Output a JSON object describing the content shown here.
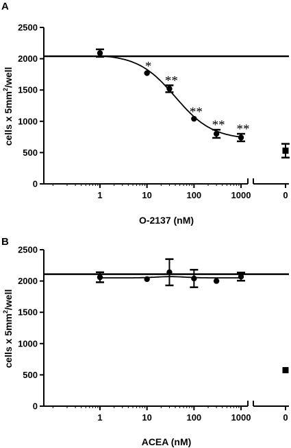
{
  "chart_data": [
    {
      "panel": "A",
      "type": "scatter",
      "xlabel": "O-2137 (nM)",
      "ylabel": {
        "pre": "cells x 5mm",
        "sup": "2",
        "post": "/well"
      },
      "xscale": "log",
      "xlim": [
        0.1,
        1500
      ],
      "x_ticks": [
        "1",
        "10",
        "100",
        "1000"
      ],
      "control_tick": "0",
      "ylim": [
        0,
        2500
      ],
      "y_ticks": [
        "0",
        "500",
        "1000",
        "1500",
        "2000",
        "2500"
      ],
      "reference_line": 2040,
      "points": [
        {
          "x": 1,
          "y": 2090,
          "err": 60,
          "sig": ""
        },
        {
          "x": 10,
          "y": 1770,
          "err": 0,
          "sig": "*"
        },
        {
          "x": 30,
          "y": 1520,
          "err": 55,
          "sig": "**"
        },
        {
          "x": 100,
          "y": 1040,
          "err": 0,
          "sig": "**"
        },
        {
          "x": 300,
          "y": 800,
          "err": 65,
          "sig": "**"
        },
        {
          "x": 1000,
          "y": 740,
          "err": 60,
          "sig": "**"
        }
      ],
      "control": {
        "x": "0",
        "y": 530,
        "err": 110
      },
      "fit": {
        "type": "sigmoid",
        "top": 2070,
        "bottom": 710,
        "ec50": 40,
        "hill": 1.1
      }
    },
    {
      "panel": "B",
      "type": "scatter",
      "xlabel": "ACEA (nM)",
      "ylabel": {
        "pre": "cells x 5mm",
        "sup": "2",
        "post": "/well"
      },
      "xscale": "log",
      "xlim": [
        0.1,
        1500
      ],
      "x_ticks": [
        "1",
        "10",
        "100",
        "1000"
      ],
      "control_tick": "0",
      "ylim": [
        0,
        2500
      ],
      "y_ticks": [
        "0",
        "500",
        "1000",
        "1500",
        "2000",
        "2500"
      ],
      "reference_line": 2110,
      "points": [
        {
          "x": 1,
          "y": 2060,
          "err": 80,
          "sig": ""
        },
        {
          "x": 10,
          "y": 2030,
          "err": 0,
          "sig": ""
        },
        {
          "x": 30,
          "y": 2140,
          "err": 210,
          "sig": ""
        },
        {
          "x": 100,
          "y": 2040,
          "err": 140,
          "sig": ""
        },
        {
          "x": 300,
          "y": 2000,
          "err": 0,
          "sig": ""
        },
        {
          "x": 1000,
          "y": 2070,
          "err": 65,
          "sig": ""
        }
      ],
      "control": {
        "x": "0",
        "y": 575,
        "err": 0
      },
      "fit": {
        "type": "flat",
        "y": 2050
      }
    }
  ]
}
